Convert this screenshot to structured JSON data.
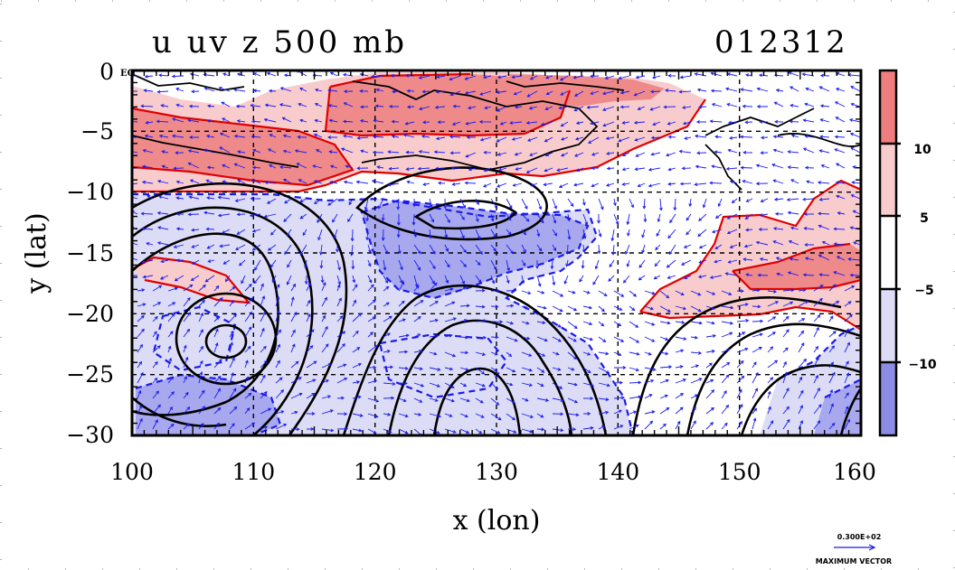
{
  "chart_data": {
    "type": "heatmap",
    "title": "u uv z 500 mb",
    "date_label": "012312",
    "xlabel": "x (lon)",
    "ylabel": "y (lat)",
    "xlim": [
      100,
      160
    ],
    "ylim": [
      -30,
      0
    ],
    "x_ticks": [
      "100",
      "110",
      "120",
      "130",
      "140",
      "150",
      "160"
    ],
    "y_ticks": [
      "0",
      "−5",
      "−10",
      "−15",
      "−20",
      "−25",
      "−30"
    ],
    "eq_label": "EQ",
    "grid": true,
    "colorbar": {
      "levels": [
        {
          "label": "10",
          "color": "#ef7d7d"
        },
        {
          "label": "5",
          "color": "#f8cccc"
        },
        {
          "label": "−5",
          "color": "#ffffff"
        },
        {
          "label": "−10",
          "color": "#dcdcf6"
        }
      ],
      "bands": [
        {
          "color": "#ef7d7d",
          "range": ">10"
        },
        {
          "color": "#f8cccc",
          "range": "5 to 10"
        },
        {
          "color": "#ffffff",
          "range": "-5 to 5"
        },
        {
          "color": "#dcdcf6",
          "range": "-10 to -5"
        },
        {
          "color": "#8c8ce6",
          "range": "<-10"
        }
      ]
    },
    "vector_legend": {
      "magnitude_label": "0.300E+02",
      "caption": "MAXIMUM VECTOR"
    },
    "colors": {
      "positive_strong": "#ef7d7d",
      "positive_weak": "#f8cccc",
      "negative_weak": "#dcdcf6",
      "negative_strong": "#8c8ce6",
      "contour_positive": "#e00000",
      "contour_negative": "#1a1aee",
      "height_contour": "#000000",
      "vectors": "#1a1aee"
    }
  }
}
